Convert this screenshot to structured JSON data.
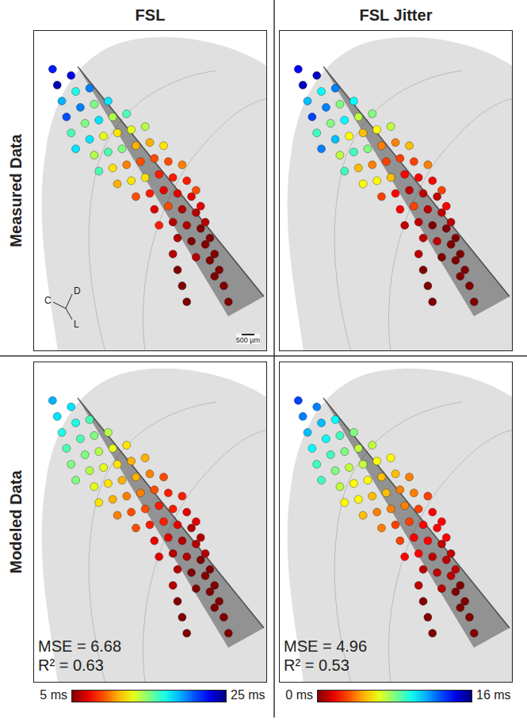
{
  "column_titles": [
    "FSL",
    "FSL Jitter"
  ],
  "row_titles": [
    "Measured Data",
    "Modeled Data"
  ],
  "colorbars": [
    {
      "range": [
        5,
        25
      ],
      "ticks": [
        {
          "value": 5,
          "label": "5 ms"
        },
        {
          "value": 25,
          "label": "25 ms"
        }
      ]
    },
    {
      "range": [
        0,
        16
      ],
      "ticks": [
        {
          "value": 0,
          "label": "0 ms"
        },
        {
          "value": 16,
          "label": "16 ms"
        }
      ]
    }
  ],
  "chart_data": [
    {
      "type": "scatter",
      "x": [
        8,
        10,
        12,
        14,
        16,
        18,
        16,
        18,
        20,
        22,
        24,
        26,
        28,
        24,
        26,
        28,
        30,
        32,
        34,
        36,
        32,
        34,
        36,
        38,
        40,
        42,
        44,
        40,
        42,
        44,
        46,
        48,
        50,
        52,
        54,
        48,
        50,
        52,
        54,
        56,
        58,
        60,
        62,
        56,
        58,
        60,
        62,
        64,
        66,
        68,
        70,
        64,
        66,
        68,
        70,
        72,
        74,
        76,
        78,
        70,
        72,
        74,
        76,
        78,
        80,
        82,
        84,
        60,
        62,
        64,
        66
      ],
      "y": [
        88,
        83,
        78,
        73,
        68,
        63,
        86,
        81,
        76,
        71,
        66,
        61,
        56,
        82,
        77,
        72,
        67,
        62,
        57,
        52,
        78,
        73,
        68,
        63,
        58,
        53,
        48,
        74,
        69,
        64,
        59,
        54,
        49,
        44,
        39,
        70,
        65,
        60,
        55,
        50,
        45,
        40,
        35,
        64,
        59,
        54,
        49,
        44,
        39,
        34,
        29,
        58,
        53,
        48,
        43,
        38,
        33,
        28,
        23,
        50,
        45,
        40,
        35,
        30,
        25,
        20,
        15,
        30,
        25,
        20,
        15
      ],
      "values": [
        22,
        24,
        19,
        21,
        16,
        18,
        23,
        17,
        20,
        15,
        18,
        14,
        16,
        20,
        15,
        18,
        13,
        16,
        12,
        11,
        18,
        14,
        12,
        15,
        10,
        12,
        9,
        16,
        13,
        11,
        9,
        12,
        8,
        7,
        8,
        14,
        11,
        9,
        8,
        7,
        9,
        6,
        6,
        12,
        9,
        8,
        7,
        6,
        6,
        5,
        6,
        10,
        8,
        7,
        6,
        5,
        5,
        5,
        5,
        9,
        7,
        6,
        5,
        5,
        5,
        5,
        5,
        6,
        5,
        5,
        5
      ],
      "xlim": [
        0,
        100
      ],
      "ylim": [
        0,
        100
      ],
      "tick_labels": false,
      "axis_labels": [
        "C",
        "D",
        "L"
      ],
      "scale_bar": "500 µm"
    },
    {
      "type": "scatter",
      "x": [
        8,
        10,
        12,
        14,
        16,
        18,
        16,
        18,
        20,
        22,
        24,
        26,
        28,
        24,
        26,
        28,
        30,
        32,
        34,
        36,
        32,
        34,
        36,
        38,
        40,
        42,
        44,
        40,
        42,
        44,
        46,
        48,
        50,
        52,
        54,
        48,
        50,
        52,
        54,
        56,
        58,
        60,
        62,
        56,
        58,
        60,
        62,
        64,
        66,
        68,
        70,
        64,
        66,
        68,
        70,
        72,
        74,
        76,
        78,
        70,
        72,
        74,
        76,
        78,
        80,
        82,
        84,
        60,
        62,
        64,
        66
      ],
      "y": [
        88,
        83,
        78,
        73,
        68,
        63,
        86,
        81,
        76,
        71,
        66,
        61,
        56,
        82,
        77,
        72,
        67,
        62,
        57,
        52,
        78,
        73,
        68,
        63,
        58,
        53,
        48,
        74,
        69,
        64,
        59,
        54,
        49,
        44,
        39,
        70,
        65,
        60,
        55,
        50,
        45,
        40,
        35,
        64,
        59,
        54,
        49,
        44,
        39,
        34,
        29,
        58,
        53,
        48,
        43,
        38,
        33,
        28,
        23,
        50,
        45,
        40,
        35,
        30,
        25,
        20,
        15,
        30,
        25,
        20,
        15
      ],
      "values": [
        14,
        15,
        11,
        13,
        9,
        12,
        15,
        10,
        12,
        8,
        11,
        7,
        9,
        12,
        8,
        10,
        6,
        9,
        5,
        6,
        10,
        7,
        5,
        8,
        4,
        6,
        3,
        8,
        6,
        4,
        3,
        5,
        2,
        2,
        1,
        7,
        4,
        3,
        2,
        1,
        3,
        1,
        1,
        5,
        3,
        2,
        1,
        1,
        0,
        1,
        0,
        4,
        2,
        1,
        1,
        0,
        0,
        0,
        0,
        3,
        2,
        1,
        0,
        0,
        0,
        0,
        0,
        1,
        0,
        0,
        0
      ],
      "xlim": [
        0,
        100
      ],
      "ylim": [
        0,
        100
      ],
      "tick_labels": false
    },
    {
      "type": "scatter",
      "x": [
        8,
        10,
        12,
        14,
        16,
        18,
        16,
        18,
        20,
        22,
        24,
        26,
        28,
        24,
        26,
        28,
        30,
        32,
        34,
        36,
        32,
        34,
        36,
        38,
        40,
        42,
        44,
        40,
        42,
        44,
        46,
        48,
        50,
        52,
        54,
        48,
        50,
        52,
        54,
        56,
        58,
        60,
        62,
        56,
        58,
        60,
        62,
        64,
        66,
        68,
        70,
        64,
        66,
        68,
        70,
        72,
        74,
        76,
        78,
        70,
        72,
        74,
        76,
        78,
        80,
        82,
        84,
        60,
        62,
        64,
        66
      ],
      "y": [
        88,
        83,
        78,
        73,
        68,
        63,
        86,
        81,
        76,
        71,
        66,
        61,
        56,
        82,
        77,
        72,
        67,
        62,
        57,
        52,
        78,
        73,
        68,
        63,
        58,
        53,
        48,
        74,
        69,
        64,
        59,
        54,
        49,
        44,
        39,
        70,
        65,
        60,
        55,
        50,
        45,
        40,
        35,
        64,
        59,
        54,
        49,
        44,
        39,
        34,
        29,
        58,
        53,
        48,
        43,
        38,
        33,
        28,
        23,
        50,
        45,
        40,
        35,
        30,
        25,
        20,
        15,
        30,
        25,
        20,
        15
      ],
      "values": [
        19,
        18,
        17,
        16,
        15,
        15,
        18,
        17,
        16,
        15,
        14,
        13,
        12,
        16,
        15,
        14,
        13,
        12,
        11,
        10,
        14,
        13,
        12,
        11,
        10,
        9,
        9,
        12,
        11,
        11,
        10,
        9,
        8,
        7,
        7,
        11,
        10,
        9,
        8,
        8,
        7,
        6,
        6,
        9,
        8,
        8,
        7,
        6,
        6,
        5,
        5,
        8,
        7,
        6,
        6,
        5,
        5,
        5,
        5,
        7,
        6,
        6,
        5,
        5,
        5,
        5,
        5,
        6,
        5,
        5,
        5
      ],
      "xlim": [
        0,
        100
      ],
      "ylim": [
        0,
        100
      ],
      "tick_labels": false,
      "stats": [
        "MSE = 6.68",
        "R² = 0.63"
      ]
    },
    {
      "type": "scatter",
      "x": [
        8,
        10,
        12,
        14,
        16,
        18,
        16,
        18,
        20,
        22,
        24,
        26,
        28,
        24,
        26,
        28,
        30,
        32,
        34,
        36,
        32,
        34,
        36,
        38,
        40,
        42,
        44,
        40,
        42,
        44,
        46,
        48,
        50,
        52,
        54,
        48,
        50,
        52,
        54,
        56,
        58,
        60,
        62,
        56,
        58,
        60,
        62,
        64,
        66,
        68,
        70,
        64,
        66,
        68,
        70,
        72,
        74,
        76,
        78,
        70,
        72,
        74,
        76,
        78,
        80,
        82,
        84,
        60,
        62,
        64,
        66
      ],
      "y": [
        88,
        83,
        78,
        73,
        68,
        63,
        86,
        81,
        76,
        71,
        66,
        61,
        56,
        82,
        77,
        72,
        67,
        62,
        57,
        52,
        78,
        73,
        68,
        63,
        58,
        53,
        48,
        74,
        69,
        64,
        59,
        54,
        49,
        44,
        39,
        70,
        65,
        60,
        55,
        50,
        45,
        40,
        35,
        64,
        59,
        54,
        49,
        44,
        39,
        34,
        29,
        58,
        53,
        48,
        43,
        38,
        33,
        28,
        23,
        50,
        45,
        40,
        35,
        30,
        25,
        20,
        15,
        30,
        25,
        20,
        15
      ],
      "values": [
        13,
        12,
        11,
        10,
        9,
        9,
        12,
        11,
        10,
        9,
        8,
        7,
        6,
        10,
        9,
        8,
        7,
        6,
        6,
        5,
        8,
        7,
        7,
        6,
        5,
        4,
        4,
        7,
        6,
        5,
        5,
        4,
        3,
        3,
        2,
        6,
        5,
        4,
        4,
        3,
        2,
        2,
        1,
        4,
        4,
        3,
        2,
        2,
        1,
        1,
        1,
        3,
        2,
        2,
        1,
        1,
        1,
        0,
        0,
        2,
        2,
        1,
        1,
        0,
        0,
        0,
        0,
        1,
        0,
        0,
        0
      ],
      "xlim": [
        0,
        100
      ],
      "ylim": [
        0,
        100
      ],
      "tick_labels": false,
      "stats": [
        "MSE = 4.96",
        "R² = 0.53"
      ]
    }
  ]
}
